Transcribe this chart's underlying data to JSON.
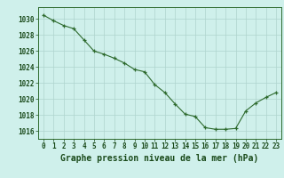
{
  "x": [
    0,
    1,
    2,
    3,
    4,
    5,
    6,
    7,
    8,
    9,
    10,
    11,
    12,
    13,
    14,
    15,
    16,
    17,
    18,
    19,
    20,
    21,
    22,
    23
  ],
  "y": [
    1030.5,
    1029.8,
    1029.2,
    1028.8,
    1027.4,
    1026.0,
    1025.6,
    1025.1,
    1024.5,
    1023.7,
    1023.4,
    1021.8,
    1020.8,
    1019.4,
    1018.1,
    1017.8,
    1016.4,
    1016.2,
    1016.2,
    1016.3,
    1018.5,
    1019.5,
    1020.2,
    1020.8
  ],
  "title": "Graphe pression niveau de la mer (hPa)",
  "xlabel_ticks": [
    0,
    1,
    2,
    3,
    4,
    5,
    6,
    7,
    8,
    9,
    10,
    11,
    12,
    13,
    14,
    15,
    16,
    17,
    18,
    19,
    20,
    21,
    22,
    23
  ],
  "yticks": [
    1016,
    1018,
    1020,
    1022,
    1024,
    1026,
    1028,
    1030
  ],
  "ylim": [
    1015.0,
    1031.5
  ],
  "xlim": [
    -0.5,
    23.5
  ],
  "line_color": "#2d6a2d",
  "bg_color": "#cff0eb",
  "grid_color": "#aed4ce",
  "title_color": "#1a4a1a",
  "tick_color": "#1a4a1a",
  "title_fontsize": 7.0,
  "tick_fontsize": 5.5
}
